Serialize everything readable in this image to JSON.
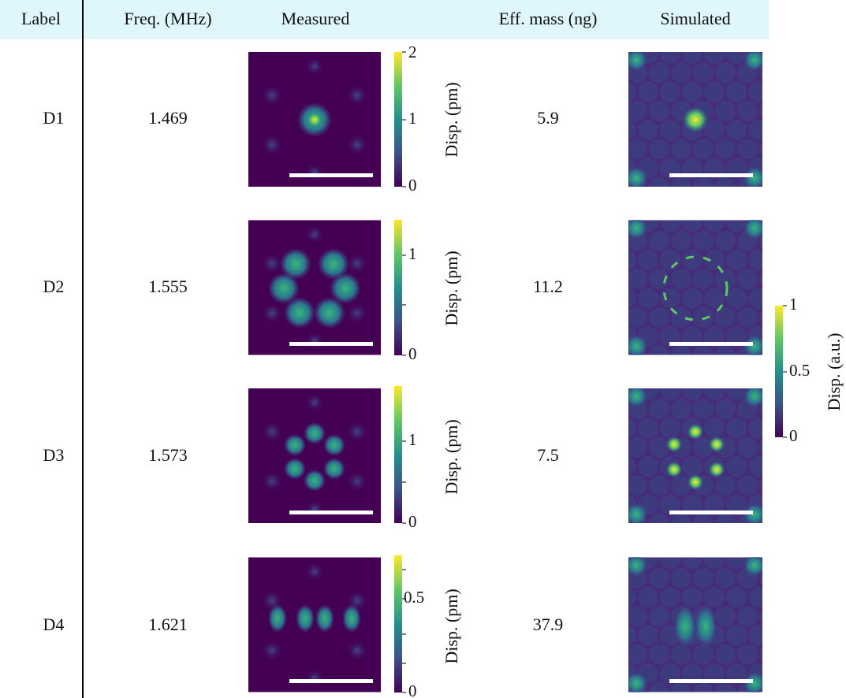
{
  "table": {
    "header": [
      "Label",
      "Freq. (MHz)",
      "Measured",
      "Eff. mass (ng)",
      "Simulated"
    ],
    "rows": [
      {
        "label": "D1",
        "freq": "1.469",
        "colorbar": {
          "ticks": [
            "0",
            "1",
            "2"
          ],
          "label": "Disp. (pm)"
        },
        "eff_mass": "5.9"
      },
      {
        "label": "D2",
        "freq": "1.555",
        "colorbar": {
          "ticks": [
            "0",
            "1"
          ],
          "label": "Disp. (pm)"
        },
        "eff_mass": "11.2"
      },
      {
        "label": "D3",
        "freq": "1.573",
        "colorbar": {
          "ticks": [
            "0",
            "1"
          ],
          "label": "Disp. (pm)"
        },
        "eff_mass": "7.5"
      },
      {
        "label": "D4",
        "freq": "1.621",
        "colorbar": {
          "ticks": [
            "0",
            "0.5"
          ],
          "label": "Disp. (pm)"
        },
        "eff_mass": "37.9"
      }
    ]
  },
  "simulated_colorbar": {
    "ticks": [
      "0",
      "0.5",
      "1"
    ],
    "label": "Disp. (a.u.)"
  }
}
